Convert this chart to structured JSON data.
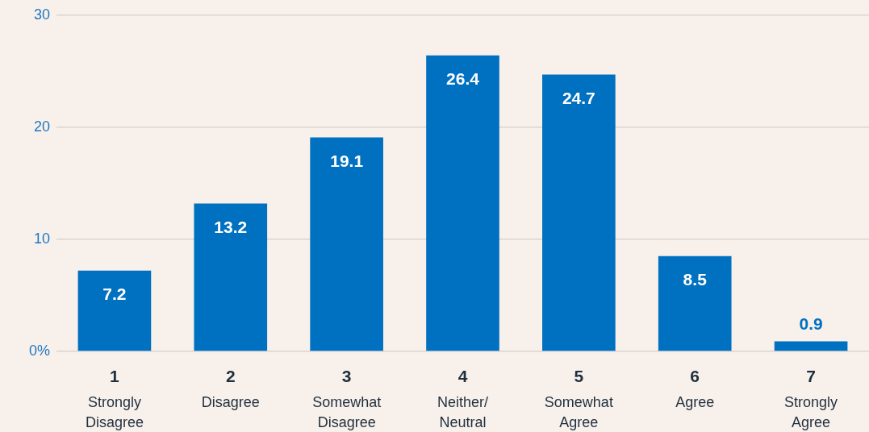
{
  "chart_data": {
    "type": "bar",
    "categories": [
      "1\nStrongly\nDisagree",
      "2\nDisagree",
      "3\nSomewhat\nDisagree",
      "4\nNeither/\nNeutral",
      "5\nSomewhat\nAgree",
      "6\nAgree",
      "7\nStrongly\nAgree"
    ],
    "values": [
      7.2,
      13.2,
      19.1,
      26.4,
      24.7,
      8.5,
      0.9
    ],
    "color": "#0070c0",
    "ylim": [
      0,
      30
    ],
    "yticks": [
      {
        "value": 0,
        "label": "0%"
      },
      10,
      20,
      30
    ],
    "grid": "y",
    "data_labels": true
  }
}
